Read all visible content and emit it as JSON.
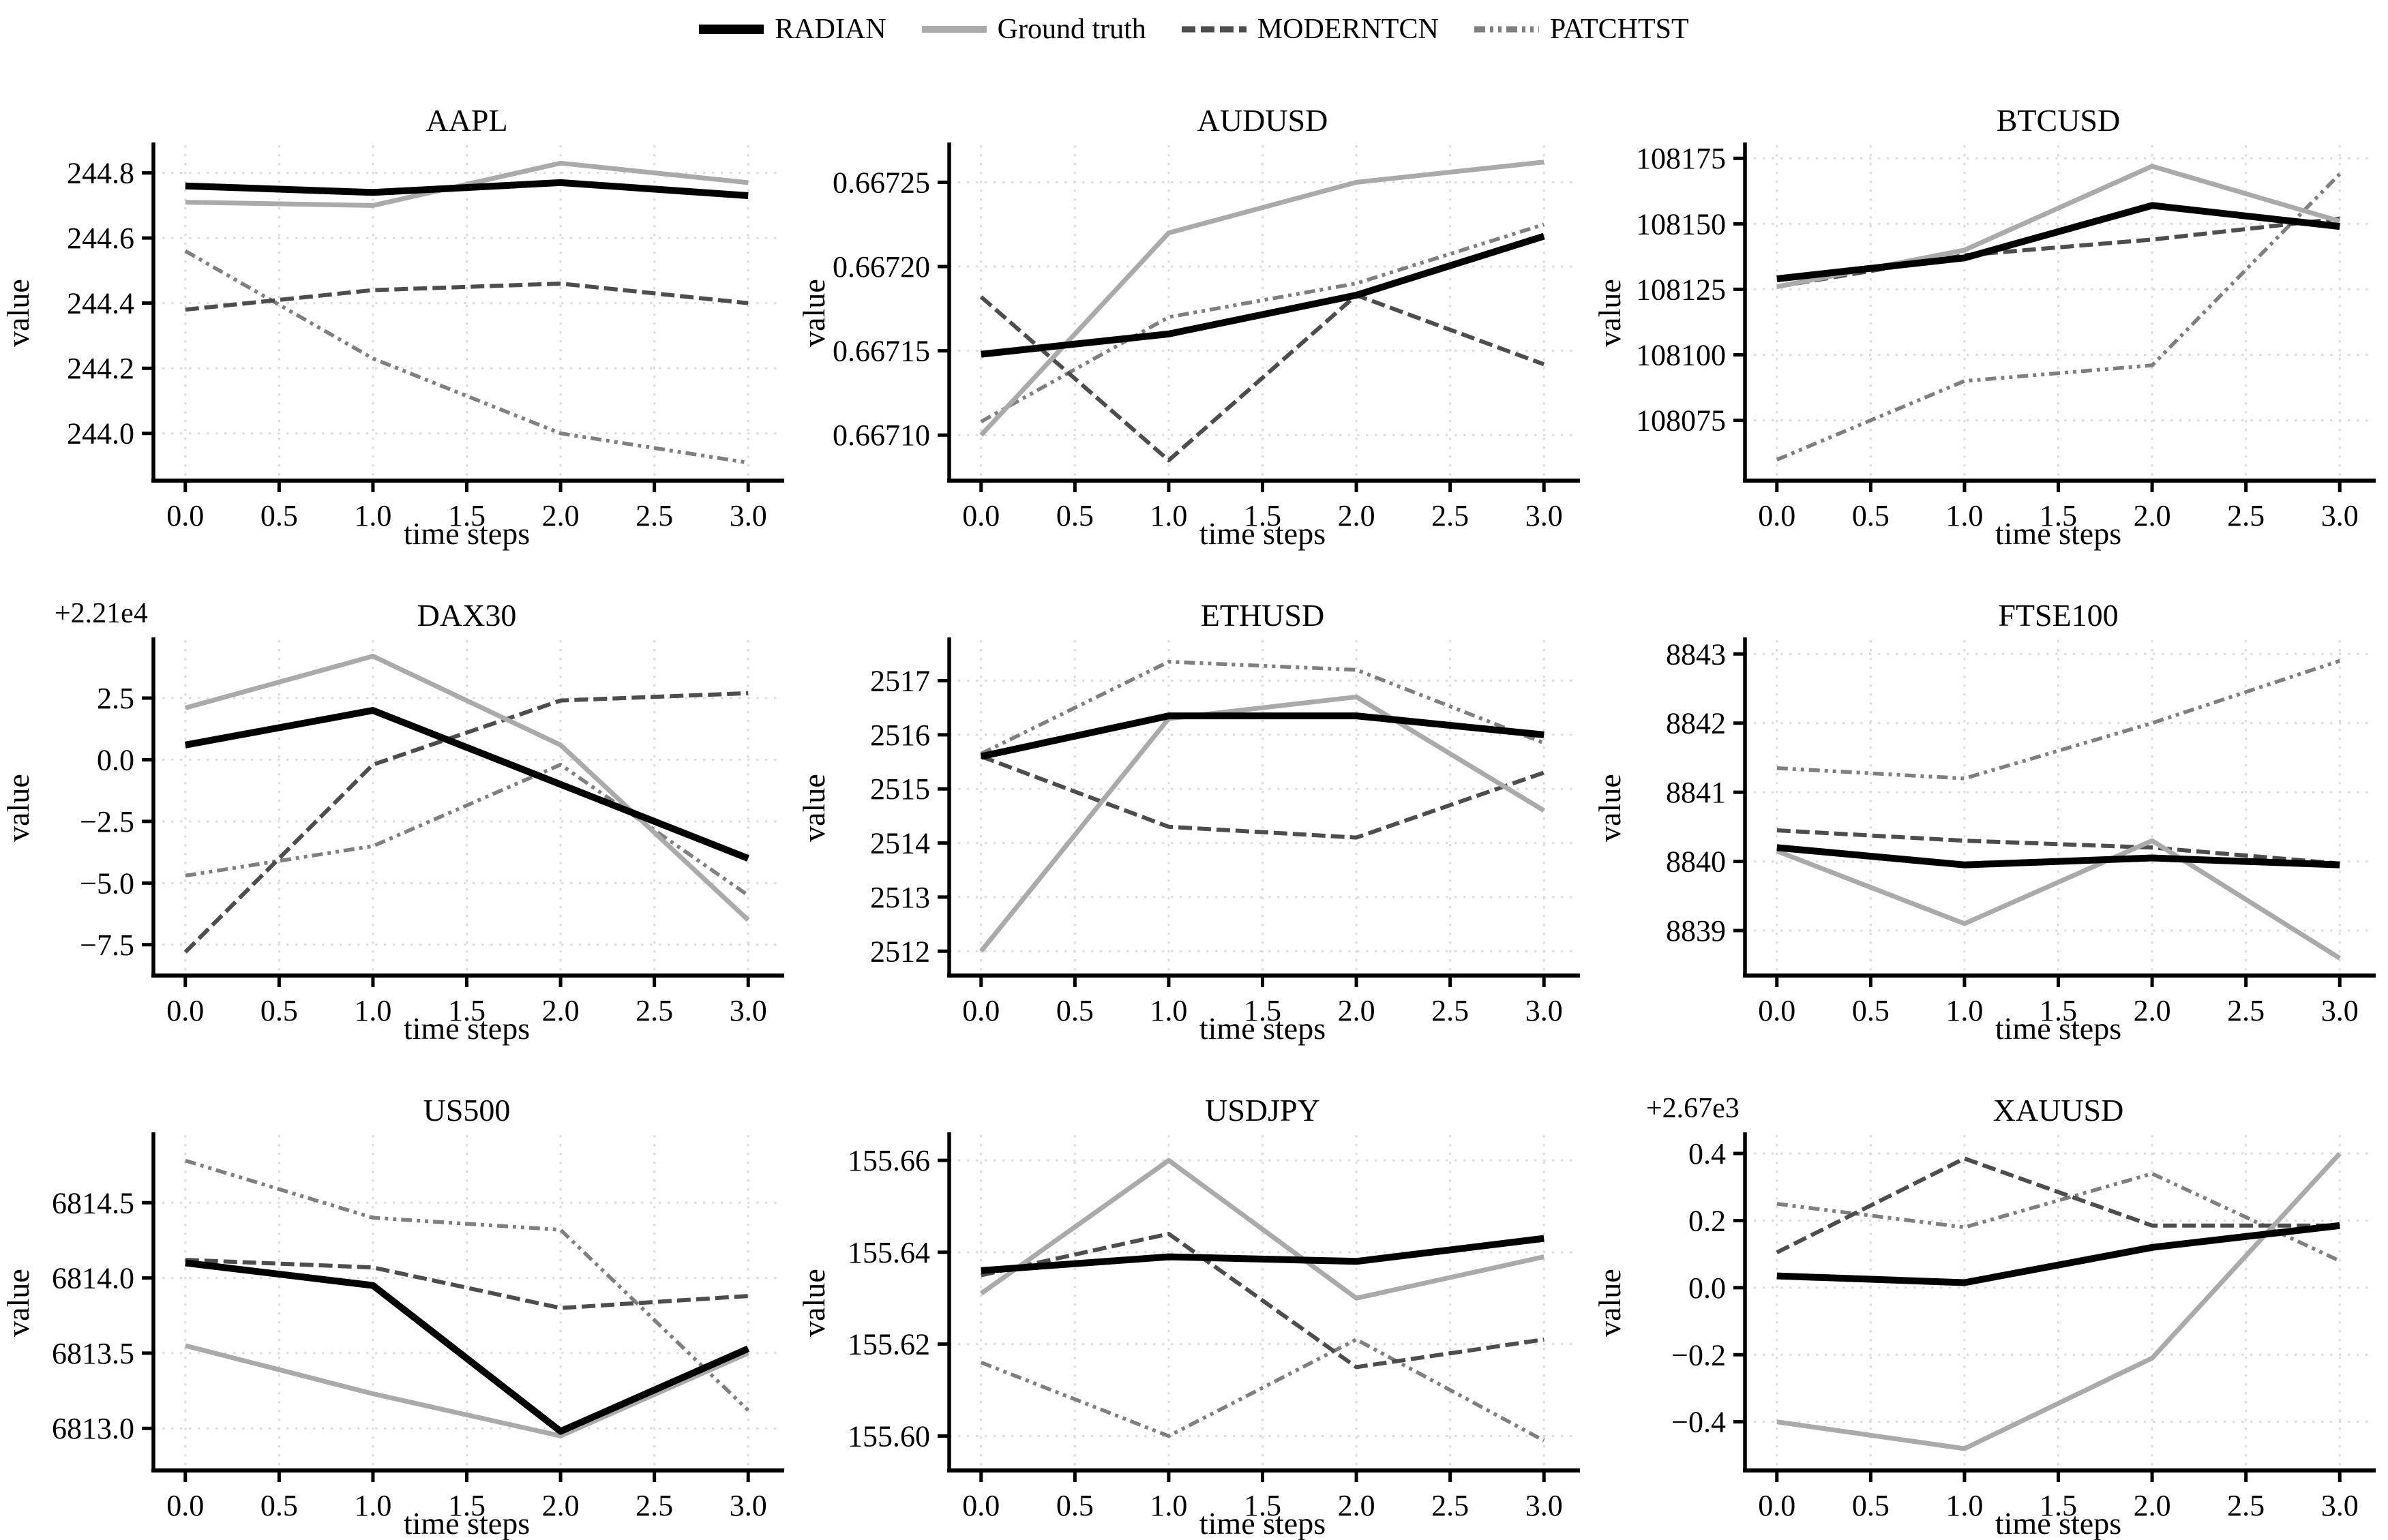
{
  "legend": {
    "items": [
      {
        "label": "RADIAN",
        "color": "#000000",
        "line_style": "solid",
        "line_width": 10,
        "legend_line_width": 14
      },
      {
        "label": "Ground truth",
        "color": "#aaaaaa",
        "line_style": "solid",
        "line_width": 7,
        "legend_line_width": 10
      },
      {
        "label": "MODERNTCN",
        "color": "#4d4d4d",
        "line_style": "dashed",
        "line_width": 6,
        "legend_line_width": 9
      },
      {
        "label": "PATCHTST",
        "color": "#7f7f7f",
        "line_style": "dashdot",
        "line_width": 5.5,
        "legend_line_width": 9
      }
    ],
    "draw_order": [
      "PATCHTST",
      "MODERNTCN",
      "Ground truth",
      "RADIAN"
    ]
  },
  "shared": {
    "xlabel": "time steps",
    "ylabel": "value",
    "x": [
      0,
      1,
      2,
      3
    ],
    "xticks": [
      0,
      0.5,
      1,
      1.5,
      2,
      2.5,
      3
    ],
    "xtick_labels": [
      "0.0",
      "0.5",
      "1.0",
      "1.5",
      "2.0",
      "2.5",
      "3.0"
    ],
    "xlim": [
      -0.17,
      3.17
    ],
    "grid": true,
    "grid_color": "#dcdcdc",
    "legend_position": "top-center"
  },
  "chart_data": [
    {
      "type": "line",
      "title": "AAPL",
      "offset_label": "",
      "xlabel": "time steps",
      "ylabel": "value",
      "x": [
        0,
        1,
        2,
        3
      ],
      "ylim": [
        243.855,
        244.885
      ],
      "yticks": [
        244.0,
        244.2,
        244.4,
        244.6,
        244.8
      ],
      "ytick_labels": [
        "244.0",
        "244.2",
        "244.4",
        "244.6",
        "244.8"
      ],
      "series": [
        {
          "name": "RADIAN",
          "values": [
            244.76,
            244.74,
            244.77,
            244.73
          ]
        },
        {
          "name": "Ground truth",
          "values": [
            244.71,
            244.7,
            244.83,
            244.77
          ]
        },
        {
          "name": "MODERNTCN",
          "values": [
            244.38,
            244.44,
            244.46,
            244.4
          ]
        },
        {
          "name": "PATCHTST",
          "values": [
            244.56,
            244.23,
            244.0,
            243.91
          ]
        }
      ]
    },
    {
      "type": "line",
      "title": "AUDUSD",
      "offset_label": "",
      "xlabel": "time steps",
      "ylabel": "value",
      "x": [
        0,
        1,
        2,
        3
      ],
      "ylim": [
        0.667073,
        0.667272
      ],
      "yticks": [
        0.6671,
        0.66715,
        0.6672,
        0.66725
      ],
      "ytick_labels": [
        "0.66710",
        "0.66715",
        "0.66720",
        "0.66725"
      ],
      "series": [
        {
          "name": "RADIAN",
          "values": [
            0.667148,
            0.66716,
            0.667183,
            0.667218
          ]
        },
        {
          "name": "Ground truth",
          "values": [
            0.6671,
            0.66722,
            0.66725,
            0.667262
          ]
        },
        {
          "name": "MODERNTCN",
          "values": [
            0.667182,
            0.667085,
            0.667183,
            0.667142
          ]
        },
        {
          "name": "PATCHTST",
          "values": [
            0.667108,
            0.66717,
            0.66719,
            0.667225
          ]
        }
      ]
    },
    {
      "type": "line",
      "title": "BTCUSD",
      "offset_label": "",
      "xlabel": "time steps",
      "ylabel": "value",
      "x": [
        0,
        1,
        2,
        3
      ],
      "ylim": [
        108052,
        108180
      ],
      "yticks": [
        108075,
        108100,
        108125,
        108150,
        108175
      ],
      "ytick_labels": [
        "108075",
        "108100",
        "108125",
        "108150",
        "108175"
      ],
      "series": [
        {
          "name": "RADIAN",
          "values": [
            108129,
            108137,
            108157,
            108149
          ]
        },
        {
          "name": "Ground truth",
          "values": [
            108126,
            108140,
            108172,
            108151
          ]
        },
        {
          "name": "MODERNTCN",
          "values": [
            108126,
            108138,
            108144,
            108152
          ]
        },
        {
          "name": "PATCHTST",
          "values": [
            108060,
            108090,
            108096,
            108169
          ]
        }
      ]
    },
    {
      "type": "line",
      "title": "DAX30",
      "offset_label": "+2.21e4",
      "xlabel": "time steps",
      "ylabel": "value",
      "x": [
        0,
        1,
        2,
        3
      ],
      "ylim": [
        -8.75,
        4.85
      ],
      "yticks": [
        -7.5,
        -5.0,
        -2.5,
        0.0,
        2.5
      ],
      "ytick_labels": [
        "−7.5",
        "−5.0",
        "−2.5",
        "0.0",
        "2.5"
      ],
      "series": [
        {
          "name": "RADIAN",
          "values": [
            0.6,
            2.0,
            -1.0,
            -4.0
          ]
        },
        {
          "name": "Ground truth",
          "values": [
            2.1,
            4.2,
            0.6,
            -6.5
          ]
        },
        {
          "name": "MODERNTCN",
          "values": [
            -7.8,
            -0.2,
            2.4,
            2.7
          ]
        },
        {
          "name": "PATCHTST",
          "values": [
            -4.7,
            -3.5,
            -0.2,
            -5.5
          ]
        }
      ]
    },
    {
      "type": "line",
      "title": "ETHUSD",
      "offset_label": "",
      "xlabel": "time steps",
      "ylabel": "value",
      "x": [
        0,
        1,
        2,
        3
      ],
      "ylim": [
        2511.55,
        2517.75
      ],
      "yticks": [
        2512,
        2513,
        2514,
        2515,
        2516,
        2517
      ],
      "ytick_labels": [
        "2512",
        "2513",
        "2514",
        "2515",
        "2516",
        "2517"
      ],
      "series": [
        {
          "name": "RADIAN",
          "values": [
            2515.6,
            2516.35,
            2516.35,
            2516.0
          ]
        },
        {
          "name": "Ground truth",
          "values": [
            2512.0,
            2516.3,
            2516.7,
            2514.6
          ]
        },
        {
          "name": "MODERNTCN",
          "values": [
            2515.6,
            2514.3,
            2514.1,
            2515.3
          ]
        },
        {
          "name": "PATCHTST",
          "values": [
            2515.65,
            2517.35,
            2517.2,
            2515.85
          ]
        }
      ]
    },
    {
      "type": "line",
      "title": "FTSE100",
      "offset_label": "",
      "xlabel": "time steps",
      "ylabel": "value",
      "x": [
        0,
        1,
        2,
        3
      ],
      "ylim": [
        8838.35,
        8843.2
      ],
      "yticks": [
        8839,
        8840,
        8841,
        8842,
        8843
      ],
      "ytick_labels": [
        "8839",
        "8840",
        "8841",
        "8842",
        "8843"
      ],
      "series": [
        {
          "name": "RADIAN",
          "values": [
            8840.2,
            8839.95,
            8840.05,
            8839.95
          ]
        },
        {
          "name": "Ground truth",
          "values": [
            8840.15,
            8839.1,
            8840.3,
            8838.6
          ]
        },
        {
          "name": "MODERNTCN",
          "values": [
            8840.45,
            8840.3,
            8840.2,
            8839.97
          ]
        },
        {
          "name": "PATCHTST",
          "values": [
            8841.35,
            8841.2,
            8842.0,
            8842.9
          ]
        }
      ]
    },
    {
      "type": "line",
      "title": "US500",
      "offset_label": "",
      "xlabel": "time steps",
      "ylabel": "value",
      "x": [
        0,
        1,
        2,
        3
      ],
      "ylim": [
        6812.72,
        6814.95
      ],
      "yticks": [
        6813.0,
        6813.5,
        6814.0,
        6814.5
      ],
      "ytick_labels": [
        "6813.0",
        "6813.5",
        "6814.0",
        "6814.5"
      ],
      "series": [
        {
          "name": "RADIAN",
          "values": [
            6814.1,
            6813.95,
            6812.98,
            6813.53
          ]
        },
        {
          "name": "Ground truth",
          "values": [
            6813.55,
            6813.23,
            6812.95,
            6813.5
          ]
        },
        {
          "name": "MODERNTCN",
          "values": [
            6814.12,
            6814.07,
            6813.8,
            6813.88
          ]
        },
        {
          "name": "PATCHTST",
          "values": [
            6814.78,
            6814.4,
            6814.32,
            6813.12
          ]
        }
      ]
    },
    {
      "type": "line",
      "title": "USDJPY",
      "offset_label": "",
      "xlabel": "time steps",
      "ylabel": "value",
      "x": [
        0,
        1,
        2,
        3
      ],
      "ylim": [
        155.5925,
        155.6655
      ],
      "yticks": [
        155.6,
        155.62,
        155.64,
        155.66
      ],
      "ytick_labels": [
        "155.60",
        "155.62",
        "155.64",
        "155.66"
      ],
      "series": [
        {
          "name": "RADIAN",
          "values": [
            155.636,
            155.639,
            155.638,
            155.643
          ]
        },
        {
          "name": "Ground truth",
          "values": [
            155.631,
            155.66,
            155.63,
            155.639
          ]
        },
        {
          "name": "MODERNTCN",
          "values": [
            155.635,
            155.644,
            155.615,
            155.621
          ]
        },
        {
          "name": "PATCHTST",
          "values": [
            155.616,
            155.6,
            155.621,
            155.599
          ]
        }
      ]
    },
    {
      "type": "line",
      "title": "XAUUSD",
      "offset_label": "+2.67e3",
      "xlabel": "time steps",
      "ylabel": "value",
      "x": [
        0,
        1,
        2,
        3
      ],
      "ylim": [
        -0.545,
        0.455
      ],
      "yticks": [
        -0.4,
        -0.2,
        0.0,
        0.2,
        0.4
      ],
      "ytick_labels": [
        "−0.4",
        "−0.2",
        "0.0",
        "0.2",
        "0.4"
      ],
      "series": [
        {
          "name": "RADIAN",
          "values": [
            0.035,
            0.015,
            0.12,
            0.185
          ]
        },
        {
          "name": "Ground truth",
          "values": [
            -0.4,
            -0.48,
            -0.21,
            0.4
          ]
        },
        {
          "name": "MODERNTCN",
          "values": [
            0.105,
            0.385,
            0.185,
            0.185
          ]
        },
        {
          "name": "PATCHTST",
          "values": [
            0.25,
            0.18,
            0.34,
            0.08
          ]
        }
      ]
    }
  ]
}
